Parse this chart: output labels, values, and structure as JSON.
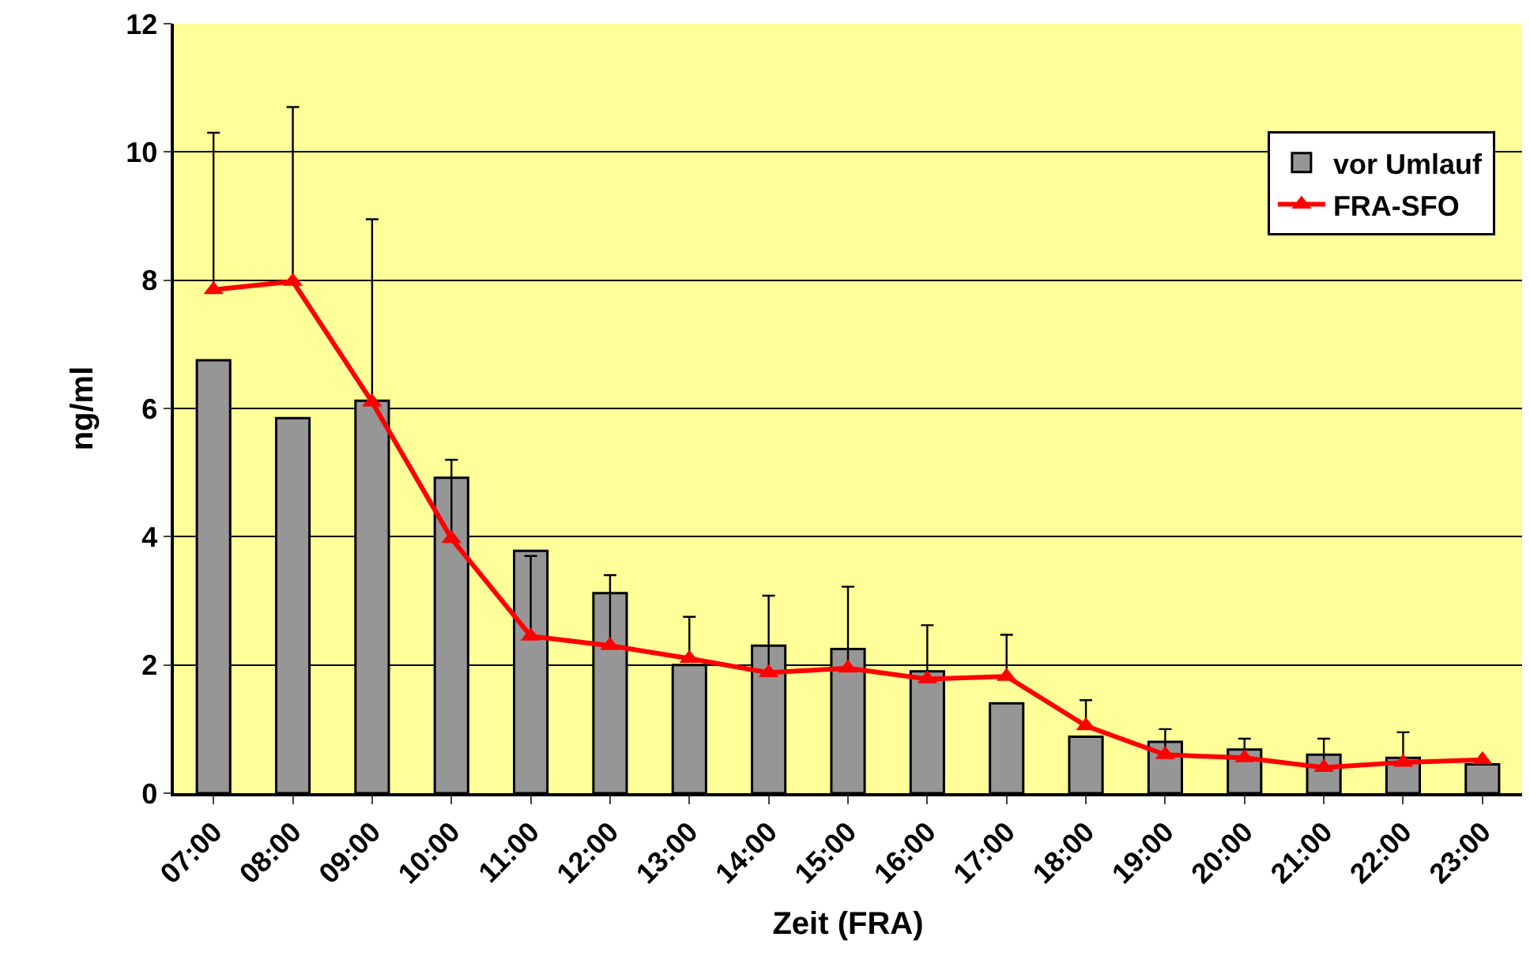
{
  "chart_data": {
    "type": "bar",
    "xlabel": "Zeit (FRA)",
    "ylabel": "ng/ml",
    "categories": [
      "07:00",
      "08:00",
      "09:00",
      "10:00",
      "11:00",
      "12:00",
      "13:00",
      "14:00",
      "15:00",
      "16:00",
      "17:00",
      "18:00",
      "19:00",
      "20:00",
      "21:00",
      "22:00",
      "23:00"
    ],
    "series": [
      {
        "name": "vor Umlauf",
        "color": "#969696",
        "values": [
          6.75,
          5.85,
          6.12,
          4.92,
          3.78,
          3.12,
          2.0,
          2.3,
          2.25,
          1.9,
          1.4,
          0.88,
          0.8,
          0.68,
          0.6,
          0.55,
          0.45
        ]
      },
      {
        "name": "FRA-SFO",
        "type": "line",
        "color": "#ff0000",
        "marker": "triangle",
        "values": [
          7.85,
          7.98,
          6.1,
          3.97,
          2.45,
          2.3,
          2.1,
          1.88,
          1.95,
          1.78,
          1.82,
          1.05,
          0.6,
          0.55,
          0.4,
          0.48,
          0.52
        ],
        "errors": [
          [
            7.85,
            10.3
          ],
          [
            7.98,
            10.7
          ],
          [
            6.1,
            8.95
          ],
          [
            3.97,
            5.2
          ],
          [
            2.45,
            3.7
          ],
          [
            2.3,
            3.4
          ],
          [
            2.1,
            2.75
          ],
          [
            1.88,
            3.08
          ],
          [
            1.95,
            3.22
          ],
          [
            1.78,
            2.62
          ],
          [
            1.82,
            2.47
          ],
          [
            1.05,
            1.45
          ],
          [
            0.6,
            1.0
          ],
          [
            0.55,
            0.85
          ],
          [
            0.4,
            0.85
          ],
          [
            0.48,
            0.95
          ],
          null
        ]
      }
    ],
    "ylim": [
      0,
      12
    ],
    "yticks": [
      0,
      2,
      4,
      6,
      8,
      10,
      12
    ],
    "grid": "y",
    "legend": "top right"
  }
}
